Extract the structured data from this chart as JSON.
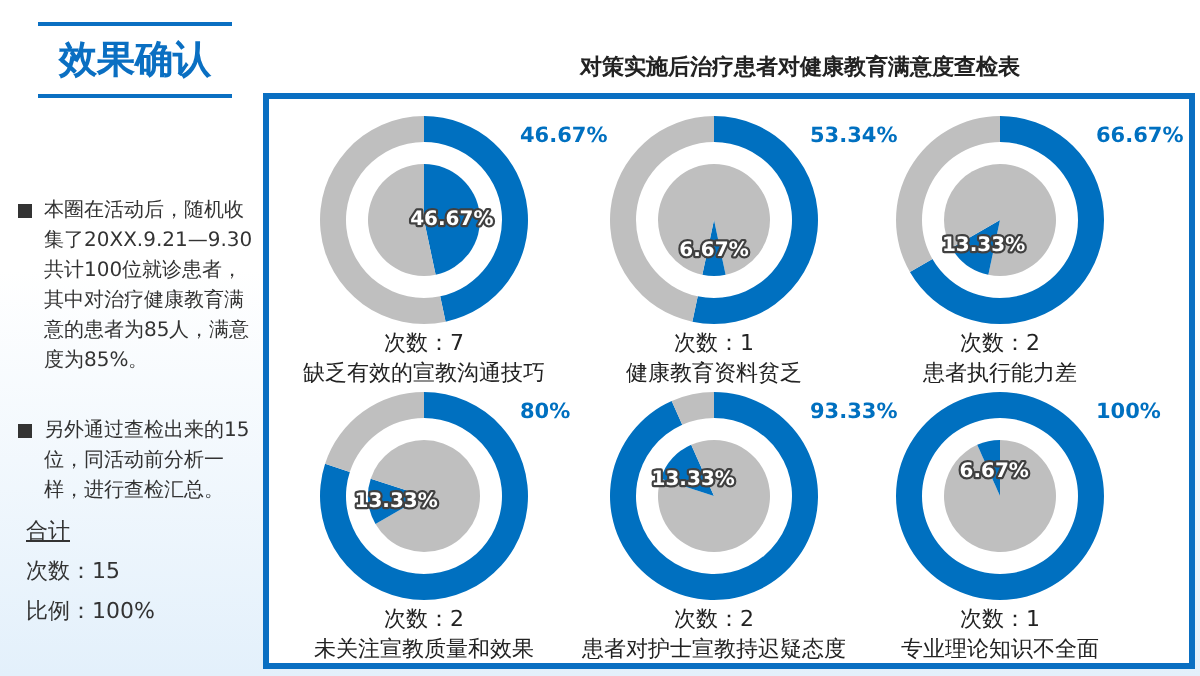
{
  "chart_data": [
    {
      "type": "other",
      "title": "效果确认",
      "annotations": [
        "本圈在活动后，随机收集了20XX.9.21—9.30共计100位就诊患者，其中对治疗健康教育满意的患者为85人，满意度为85%。",
        "另外通过查检出来的15位，同活动前分析一样，进行查检汇总。",
        "合计",
        "次数：15",
        "比例：100%"
      ]
    },
    {
      "type": "other",
      "title": "对策实施后治疗患者对健康教育满意度查检表"
    },
    {
      "type": "donut",
      "xlabel": "次数：7",
      "title": "缺乏有效的宣教沟通技巧",
      "series": [
        {
          "type": "pie",
          "values": [
            46.67,
            53.33
          ],
          "colors": [
            "#0070c0",
            "#bfbfbf"
          ],
          "value_labels": [
            "46.67%",
            null
          ]
        },
        {
          "type": "donut",
          "values": [
            46.67,
            53.33
          ],
          "colors": [
            "#0070c0",
            "#bfbfbf"
          ],
          "value_labels": [
            "46.67%",
            null
          ]
        }
      ]
    },
    {
      "type": "donut",
      "xlabel": "次数：1",
      "title": "健康教育资料贫乏",
      "series": [
        {
          "type": "pie",
          "values": [
            46.67,
            6.67,
            46.66
          ],
          "colors": [
            "#bfbfbf",
            "#0070c0",
            "#bfbfbf"
          ],
          "value_labels": [
            null,
            "6.67%",
            null
          ]
        },
        {
          "type": "donut",
          "values": [
            53.34,
            46.66
          ],
          "colors": [
            "#0070c0",
            "#bfbfbf"
          ],
          "value_labels": [
            "53.34%",
            null
          ]
        }
      ]
    },
    {
      "type": "donut",
      "xlabel": "次数：2",
      "title": "患者执行能力差",
      "series": [
        {
          "type": "pie",
          "values": [
            53.34,
            13.33,
            33.33
          ],
          "colors": [
            "#bfbfbf",
            "#0070c0",
            "#bfbfbf"
          ],
          "value_labels": [
            null,
            "13.33%",
            null
          ]
        },
        {
          "type": "donut",
          "values": [
            66.67,
            33.33
          ],
          "colors": [
            "#0070c0",
            "#bfbfbf"
          ],
          "value_labels": [
            "66.67%",
            null
          ]
        }
      ]
    },
    {
      "type": "donut",
      "xlabel": "次数：2",
      "title": "未关注宣教质量和效果",
      "series": [
        {
          "type": "pie",
          "values": [
            66.67,
            13.33,
            20
          ],
          "colors": [
            "#bfbfbf",
            "#0070c0",
            "#bfbfbf"
          ],
          "value_labels": [
            null,
            "13.33%",
            null
          ]
        },
        {
          "type": "donut",
          "values": [
            80,
            20
          ],
          "colors": [
            "#0070c0",
            "#bfbfbf"
          ],
          "value_labels": [
            "80%",
            null
          ]
        }
      ]
    },
    {
      "type": "donut",
      "xlabel": "次数：2",
      "title": "患者对护士宣教持迟疑态度",
      "series": [
        {
          "type": "pie",
          "values": [
            80,
            13.33,
            6.67
          ],
          "colors": [
            "#bfbfbf",
            "#0070c0",
            "#bfbfbf"
          ],
          "value_labels": [
            null,
            "13.33%",
            null
          ]
        },
        {
          "type": "donut",
          "values": [
            93.33,
            6.67
          ],
          "colors": [
            "#0070c0",
            "#bfbfbf"
          ],
          "value_labels": [
            "93.33%",
            null
          ]
        }
      ]
    },
    {
      "type": "donut",
      "xlabel": "次数：1",
      "title": "专业理论知识不全面",
      "series": [
        {
          "type": "pie",
          "values": [
            93.33,
            6.67
          ],
          "colors": [
            "#bfbfbf",
            "#0070c0"
          ],
          "value_labels": [
            null,
            "6.67%"
          ]
        },
        {
          "type": "donut",
          "values": [
            100
          ],
          "colors": [
            "#0070c0"
          ],
          "value_labels": [
            "100%"
          ]
        }
      ]
    }
  ]
}
